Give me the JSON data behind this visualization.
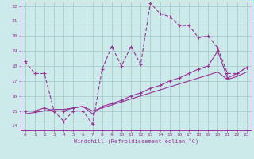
{
  "xlabel": "Windchill (Refroidissement éolien,°C)",
  "bg_color": "#cceaea",
  "grid_color": "#aacccc",
  "line_color": "#993399",
  "spine_color": "#993399",
  "xlim": [
    -0.5,
    23.5
  ],
  "ylim": [
    13.7,
    22.3
  ],
  "yticks": [
    14,
    15,
    16,
    17,
    18,
    19,
    20,
    21,
    22
  ],
  "xticks": [
    0,
    1,
    2,
    3,
    4,
    5,
    6,
    7,
    8,
    9,
    10,
    11,
    12,
    13,
    14,
    15,
    16,
    17,
    18,
    19,
    20,
    21,
    22,
    23
  ],
  "s1_x": [
    0,
    1,
    2,
    3,
    4,
    5,
    6,
    7,
    8,
    9,
    10,
    11,
    12,
    13,
    14,
    15,
    16,
    17,
    18,
    19,
    20,
    21,
    22,
    23
  ],
  "s1_y": [
    18.3,
    17.5,
    17.5,
    15.0,
    14.3,
    15.0,
    15.0,
    14.1,
    17.8,
    19.3,
    18.0,
    19.3,
    18.1,
    22.2,
    21.5,
    21.3,
    20.7,
    20.7,
    19.9,
    20.0,
    19.2,
    17.5,
    17.5,
    17.9
  ],
  "s2_x": [
    0,
    1,
    2,
    3,
    4,
    5,
    6,
    7,
    8,
    9,
    10,
    11,
    12,
    13,
    14,
    15,
    16,
    17,
    18,
    19,
    20,
    21,
    22,
    23
  ],
  "s2_y": [
    15.0,
    15.0,
    15.2,
    15.0,
    15.0,
    15.2,
    15.3,
    14.8,
    15.3,
    15.5,
    15.7,
    16.0,
    16.2,
    16.5,
    16.7,
    17.0,
    17.2,
    17.5,
    17.8,
    18.0,
    19.0,
    17.2,
    17.5,
    17.9
  ],
  "s3_x": [
    0,
    1,
    2,
    3,
    4,
    5,
    6,
    7,
    8,
    9,
    10,
    11,
    12,
    13,
    14,
    15,
    16,
    17,
    18,
    19,
    20,
    21,
    22,
    23
  ],
  "s3_y": [
    14.8,
    14.9,
    15.0,
    15.1,
    15.1,
    15.2,
    15.3,
    15.0,
    15.2,
    15.4,
    15.6,
    15.8,
    16.0,
    16.2,
    16.4,
    16.6,
    16.8,
    17.0,
    17.2,
    17.4,
    17.6,
    17.1,
    17.3,
    17.6
  ]
}
